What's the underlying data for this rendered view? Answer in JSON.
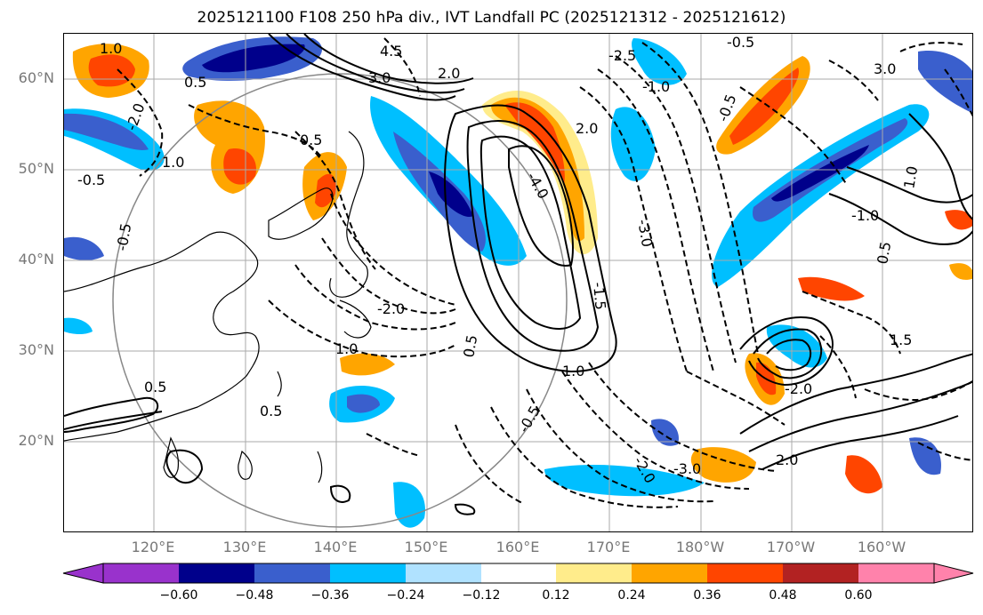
{
  "title": "2025121100 F108 250 hPa div., IVT Landfall PC (2025121312 - 2025121612)",
  "lat_labels": [
    "60°N",
    "50°N",
    "40°N",
    "30°N",
    "20°N"
  ],
  "lon_labels": [
    "120°E",
    "130°E",
    "140°E",
    "150°E",
    "160°E",
    "170°E",
    "180°W",
    "170°W",
    "160°W"
  ],
  "colorbar": {
    "ticks": [
      "−0.60",
      "−0.48",
      "−0.36",
      "−0.24",
      "−0.12",
      "0.12",
      "0.24",
      "0.36",
      "0.48",
      "0.60"
    ],
    "colors": [
      "#9932cc",
      "#00008b",
      "#3a5fcd",
      "#00bfff",
      "#b0e2ff",
      "#ffffff",
      "#ffec8b",
      "#ffa500",
      "#ff4500",
      "#b22222",
      "#ff82ab"
    ]
  },
  "contour_labels": [
    "1.0",
    "4.5",
    "0.5",
    "-2.0",
    "0.5",
    "3.0",
    "1.0",
    "-0.5",
    "2.0",
    "-2.5",
    "2.0",
    "-4.0",
    "-3.0",
    "-1.5",
    "1.0",
    "-0.5",
    "0.5",
    "-2.0",
    "-1.0",
    "-0.5",
    "-0.5",
    "1.0",
    "3.0",
    "-2.0",
    "0.5",
    "1.0",
    "-0.5",
    "0.5",
    "1.5",
    "-3.0",
    "2.0",
    "-2.0",
    "0.5",
    "-1.0"
  ]
}
